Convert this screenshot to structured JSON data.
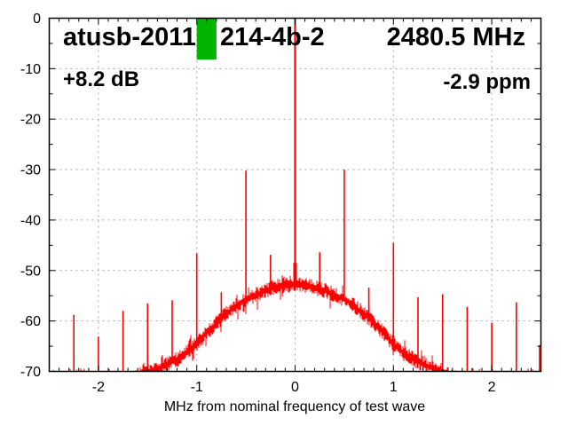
{
  "header": {
    "test_id_left": "atusb-2011",
    "test_id_right": "214-4b-2",
    "frequency": "2480.5 MHz",
    "gain": "+8.2 dB",
    "ppm_offset": "-2.9 ppm"
  },
  "chart_data": {
    "type": "line",
    "title": "",
    "xlabel": "MHz from nominal frequency of test wave",
    "ylabel": "",
    "xlim": [
      -2.5,
      2.5
    ],
    "ylim": [
      -70,
      0
    ],
    "x_ticks": [
      -2,
      -1,
      0,
      1,
      2
    ],
    "y_ticks": [
      0,
      -10,
      -20,
      -30,
      -40,
      -50,
      -60,
      -70
    ],
    "x_minor_step": 0.1,
    "y_minor_step": 5,
    "grid": true,
    "legend": "none",
    "trace_color": "#ff0000",
    "grid_color": "#a8a8a8",
    "frame_color": "#000000",
    "marker": {
      "x0_mhz": -1.0,
      "x1_mhz": -0.8,
      "db_top": 0,
      "db_bottom": -8.2,
      "color": "#00b400"
    },
    "carrier": {
      "freq_mhz": 0.0,
      "level_db": 0.0
    },
    "spurs": [
      [
        -2.25,
        -58.8
      ],
      [
        -2.0,
        -63.1
      ],
      [
        -1.75,
        -58.0
      ],
      [
        -1.5,
        -56.5
      ],
      [
        -1.25,
        -55.9
      ],
      [
        -1.0,
        -46.6
      ],
      [
        -0.75,
        -54.3
      ],
      [
        -0.5,
        -30.2
      ],
      [
        -0.25,
        -46.9
      ],
      [
        0.25,
        -46.4
      ],
      [
        0.5,
        -30.0
      ],
      [
        0.75,
        -53.4
      ],
      [
        1.0,
        -44.5
      ],
      [
        1.25,
        -55.3
      ],
      [
        1.5,
        -54.7
      ],
      [
        1.75,
        -57.2
      ],
      [
        2.0,
        -60.4
      ],
      [
        2.25,
        -56.3
      ],
      [
        2.5,
        -64.8
      ]
    ],
    "noise_hump": {
      "center_mhz": 0,
      "peak_db": -52.6,
      "profile": [
        [
          0.0,
          -52.6
        ],
        [
          0.1,
          -52.9
        ],
        [
          0.2,
          -53.3
        ],
        [
          0.3,
          -54.0
        ],
        [
          0.4,
          -54.8
        ],
        [
          0.5,
          -55.7
        ],
        [
          0.6,
          -57.0
        ],
        [
          0.7,
          -58.6
        ],
        [
          0.8,
          -60.4
        ],
        [
          0.9,
          -62.4
        ],
        [
          1.0,
          -64.6
        ],
        [
          1.1,
          -66.3
        ],
        [
          1.2,
          -67.6
        ],
        [
          1.3,
          -68.6
        ],
        [
          1.4,
          -69.4
        ],
        [
          1.5,
          -70.0
        ],
        [
          1.68,
          -71.8
        ]
      ],
      "noise_amplitude_db": 1.1
    },
    "noise_floor_db": -71.5
  }
}
